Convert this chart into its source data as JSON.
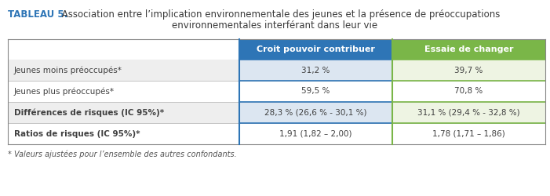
{
  "title_bold": "TABLEAU 5.",
  "title_rest": " Association entre l’implication environnementale des jeunes et la présence de préoccupations",
  "title_line2": "environnementales interférant dans leur vie",
  "col_headers": [
    "Croit pouvoir contribuer",
    "Essaie de changer"
  ],
  "col_header_colors": [
    "#2e75b6",
    "#7ab648"
  ],
  "col_header_text_color": "#ffffff",
  "rows": [
    {
      "label": "Jeunes moins préoccupés*",
      "values": [
        "31,2 %",
        "39,7 %"
      ],
      "bold": false,
      "label_bg": "#eeeeee",
      "c1_bg": "#dce6f1",
      "c2_bg": "#eef4e3"
    },
    {
      "label": "Jeunes plus préoccupés*",
      "values": [
        "59,5 %",
        "70,8 %"
      ],
      "bold": false,
      "label_bg": "#ffffff",
      "c1_bg": "#ffffff",
      "c2_bg": "#ffffff"
    },
    {
      "label": "Différences de risques (IC 95%)*",
      "values": [
        "28,3 % (26,6 % - 30,1 %)",
        "31,1 % (29,4 % - 32,8 %)"
      ],
      "bold": true,
      "label_bg": "#eeeeee",
      "c1_bg": "#dce6f1",
      "c2_bg": "#eef4e3"
    },
    {
      "label": "Ratios de risques (IC 95%)*",
      "values": [
        "1,91 (1,82 – 2,00)",
        "1,78 (1,71 – 1,86)"
      ],
      "bold": true,
      "label_bg": "#ffffff",
      "c1_bg": "#ffffff",
      "c2_bg": "#ffffff"
    }
  ],
  "footnote": "* Valeurs ajustées pour l’ensemble des autres confondants.",
  "title_color": "#2e75b6",
  "text_color": "#404040",
  "fig_bg": "#ffffff",
  "fig_w": 7.01,
  "fig_h": 2.5,
  "dpi": 100
}
